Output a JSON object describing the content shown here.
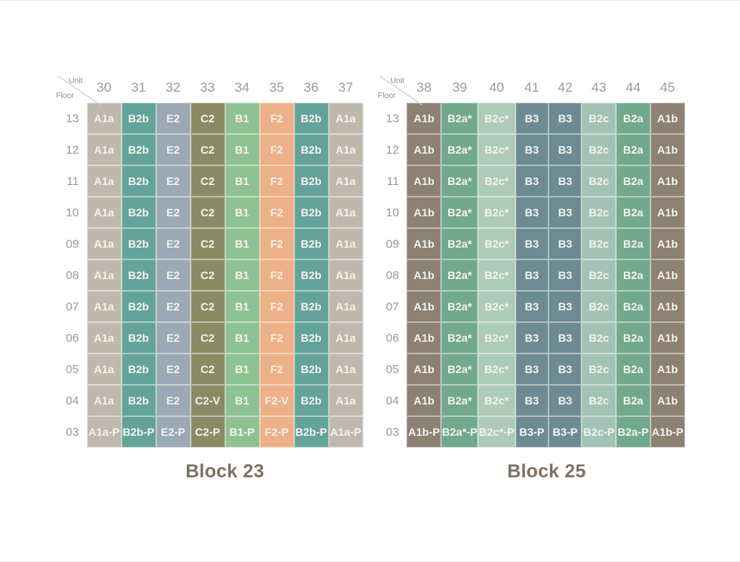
{
  "corner": {
    "unit_label": "Unit",
    "floor_label": "Floor"
  },
  "colors": {
    "cell_text": "#f5f3ed",
    "muted_text": "#9b9a98",
    "title_text": "#7b7166",
    "diagonal_line": "#cfccc8"
  },
  "blocks": [
    {
      "title": "Block 23",
      "units": [
        "30",
        "31",
        "32",
        "33",
        "34",
        "35",
        "36",
        "37"
      ],
      "column_colors": [
        "#bfb8ad",
        "#63a39a",
        "#9ba8b5",
        "#8c8a65",
        "#8fc293",
        "#edb089",
        "#63a39a",
        "#bfb8ad"
      ],
      "rows": [
        {
          "floor": "13",
          "cells": [
            "A1a",
            "B2b",
            "E2",
            "C2",
            "B1",
            "F2",
            "B2b",
            "A1a"
          ]
        },
        {
          "floor": "12",
          "cells": [
            "A1a",
            "B2b",
            "E2",
            "C2",
            "B1",
            "F2",
            "B2b",
            "A1a"
          ]
        },
        {
          "floor": "11",
          "cells": [
            "A1a",
            "B2b",
            "E2",
            "C2",
            "B1",
            "F2",
            "B2b",
            "A1a"
          ]
        },
        {
          "floor": "10",
          "cells": [
            "A1a",
            "B2b",
            "E2",
            "C2",
            "B1",
            "F2",
            "B2b",
            "A1a"
          ]
        },
        {
          "floor": "09",
          "cells": [
            "A1a",
            "B2b",
            "E2",
            "C2",
            "B1",
            "F2",
            "B2b",
            "A1a"
          ]
        },
        {
          "floor": "08",
          "cells": [
            "A1a",
            "B2b",
            "E2",
            "C2",
            "B1",
            "F2",
            "B2b",
            "A1a"
          ]
        },
        {
          "floor": "07",
          "cells": [
            "A1a",
            "B2b",
            "E2",
            "C2",
            "B1",
            "F2",
            "B2b",
            "A1a"
          ]
        },
        {
          "floor": "06",
          "cells": [
            "A1a",
            "B2b",
            "E2",
            "C2",
            "B1",
            "F2",
            "B2b",
            "A1a"
          ]
        },
        {
          "floor": "05",
          "cells": [
            "A1a",
            "B2b",
            "E2",
            "C2",
            "B1",
            "F2",
            "B2b",
            "A1a"
          ]
        },
        {
          "floor": "04",
          "cells": [
            "A1a",
            "B2b",
            "E2",
            "C2-V",
            "B1",
            "F2-V",
            "B2b",
            "A1a"
          ]
        },
        {
          "floor": "03",
          "cells": [
            "A1a-P",
            "B2b-P",
            "E2-P",
            "C2-P",
            "B1-P",
            "F2-P",
            "B2b-P",
            "A1a-P"
          ]
        }
      ]
    },
    {
      "title": "Block 25",
      "units": [
        "38",
        "39",
        "40",
        "41",
        "42",
        "43",
        "44",
        "45"
      ],
      "column_colors": [
        "#8c8173",
        "#72a88d",
        "#aecaba",
        "#6d8b93",
        "#6d8b93",
        "#a3c2b5",
        "#72a88d",
        "#8c8173"
      ],
      "rows": [
        {
          "floor": "13",
          "cells": [
            "A1b",
            "B2a*",
            "B2c*",
            "B3",
            "B3",
            "B2c",
            "B2a",
            "A1b"
          ]
        },
        {
          "floor": "12",
          "cells": [
            "A1b",
            "B2a*",
            "B2c*",
            "B3",
            "B3",
            "B2c",
            "B2a",
            "A1b"
          ]
        },
        {
          "floor": "11",
          "cells": [
            "A1b",
            "B2a*",
            "B2c*",
            "B3",
            "B3",
            "B2c",
            "B2a",
            "A1b"
          ]
        },
        {
          "floor": "10",
          "cells": [
            "A1b",
            "B2a*",
            "B2c*",
            "B3",
            "B3",
            "B2c",
            "B2a",
            "A1b"
          ]
        },
        {
          "floor": "09",
          "cells": [
            "A1b",
            "B2a*",
            "B2c*",
            "B3",
            "B3",
            "B2c",
            "B2a",
            "A1b"
          ]
        },
        {
          "floor": "08",
          "cells": [
            "A1b",
            "B2a*",
            "B2c*",
            "B3",
            "B3",
            "B2c",
            "B2a",
            "A1b"
          ]
        },
        {
          "floor": "07",
          "cells": [
            "A1b",
            "B2a*",
            "B2c*",
            "B3",
            "B3",
            "B2c",
            "B2a",
            "A1b"
          ]
        },
        {
          "floor": "06",
          "cells": [
            "A1b",
            "B2a*",
            "B2c*",
            "B3",
            "B3",
            "B2c",
            "B2a",
            "A1b"
          ]
        },
        {
          "floor": "05",
          "cells": [
            "A1b",
            "B2a*",
            "B2c*",
            "B3",
            "B3",
            "B2c",
            "B2a",
            "A1b"
          ]
        },
        {
          "floor": "04",
          "cells": [
            "A1b",
            "B2a*",
            "B2c*",
            "B3",
            "B3",
            "B2c",
            "B2a",
            "A1b"
          ]
        },
        {
          "floor": "03",
          "cells": [
            "A1b-P",
            "B2a*-P",
            "B2c*-P",
            "B3-P",
            "B3-P",
            "B2c-P",
            "B2a-P",
            "A1b-P"
          ]
        }
      ]
    }
  ]
}
